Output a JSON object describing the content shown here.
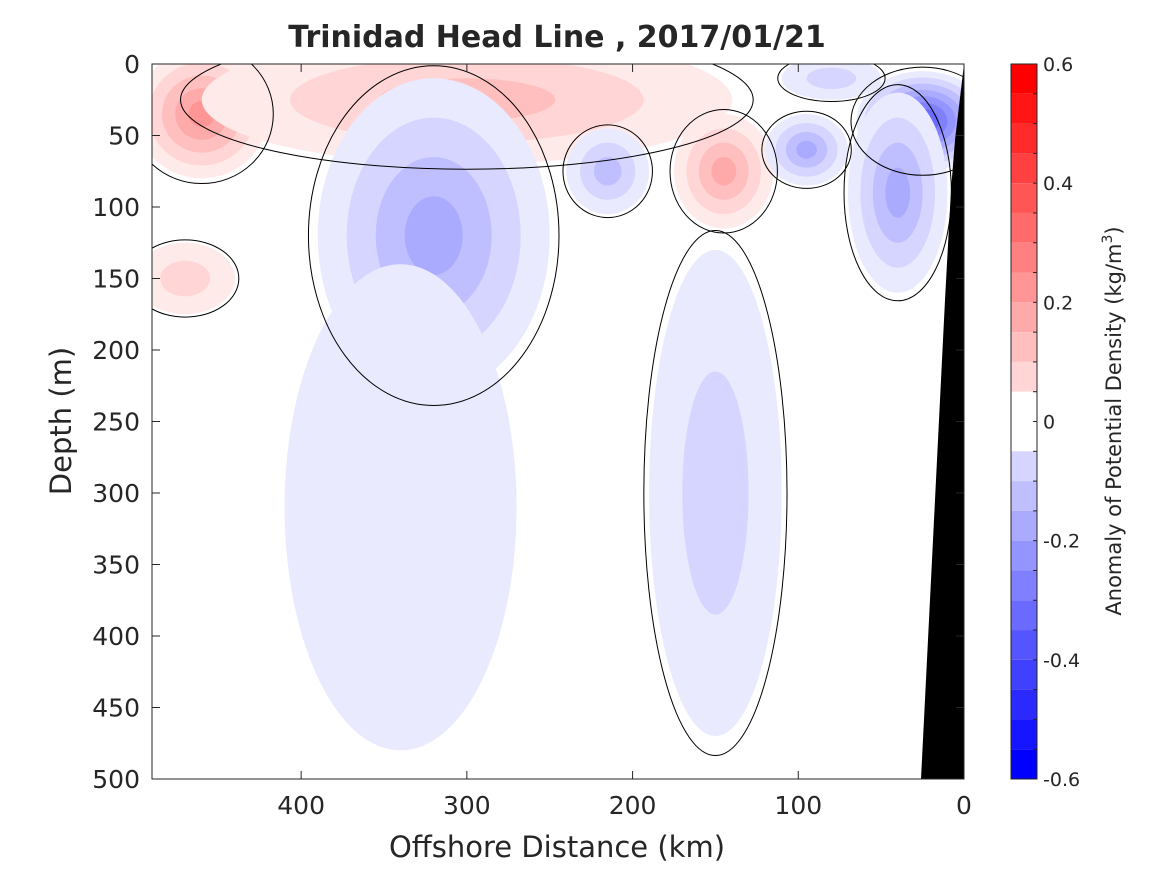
{
  "chart_data": {
    "type": "heatmap",
    "title": "Trinidad Head Line , 2017/01/21",
    "xlabel": "Offshore Distance (km)",
    "ylabel": "Depth (m)",
    "colorbar_label_prefix": "Anomaly of Potential Density (kg/m",
    "colorbar_label_exp": "3",
    "colorbar_label_suffix": ")",
    "xlim": [
      490,
      0
    ],
    "ylim": [
      0,
      500
    ],
    "x_reversed": true,
    "y_reversed": true,
    "xticks": [
      400,
      300,
      200,
      100,
      0
    ],
    "yticks": [
      0,
      50,
      100,
      150,
      200,
      250,
      300,
      350,
      400,
      450,
      500
    ],
    "clim": [
      -0.6,
      0.6
    ],
    "colorbar_ticks": [
      0.6,
      0.4,
      0.2,
      0,
      -0.2,
      -0.4,
      -0.6
    ],
    "colorbar_tick_labels": [
      "0.6",
      "0.4",
      "0.2",
      "0",
      "-0.2",
      "-0.4",
      "-0.6"
    ],
    "contour_step": 0.05,
    "colormap": {
      "positive": "#ff0000",
      "zero": "#ffffff",
      "negative": "#0000ff"
    },
    "bathymetry_color": "#000000",
    "features": [
      {
        "sign": "positive",
        "x": 460,
        "y": 35,
        "peak": 0.25,
        "x_extent": 40,
        "y_extent": 45
      },
      {
        "sign": "positive",
        "x": 300,
        "y": 25,
        "peak": 0.15,
        "x_extent": 160,
        "y_extent": 45
      },
      {
        "sign": "positive",
        "x": 145,
        "y": 75,
        "peak": 0.2,
        "x_extent": 30,
        "y_extent": 40
      },
      {
        "sign": "positive",
        "x": 470,
        "y": 150,
        "peak": 0.1,
        "x_extent": 30,
        "y_extent": 25
      },
      {
        "sign": "negative",
        "x": 320,
        "y": 120,
        "peak": -0.2,
        "x_extent": 70,
        "y_extent": 110
      },
      {
        "sign": "negative",
        "x": 340,
        "y": 310,
        "peak": -0.05,
        "x_extent": 70,
        "y_extent": 170
      },
      {
        "sign": "negative",
        "x": 215,
        "y": 75,
        "peak": -0.15,
        "x_extent": 25,
        "y_extent": 30
      },
      {
        "sign": "negative",
        "x": 150,
        "y": 300,
        "peak": -0.1,
        "x_extent": 40,
        "y_extent": 170
      },
      {
        "sign": "negative",
        "x": 25,
        "y": 40,
        "peak": -0.4,
        "x_extent": 40,
        "y_extent": 35
      },
      {
        "sign": "negative",
        "x": 40,
        "y": 90,
        "peak": -0.2,
        "x_extent": 30,
        "y_extent": 70
      },
      {
        "sign": "negative",
        "x": 95,
        "y": 60,
        "peak": -0.2,
        "x_extent": 25,
        "y_extent": 25
      },
      {
        "sign": "negative",
        "x": 80,
        "y": 10,
        "peak": -0.1,
        "x_extent": 30,
        "y_extent": 15
      }
    ]
  }
}
